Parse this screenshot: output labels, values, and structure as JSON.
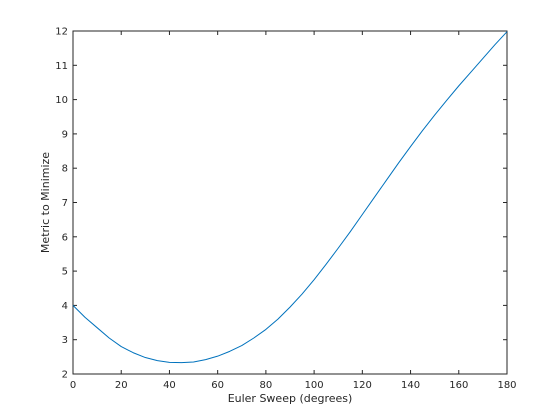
{
  "chart_data": {
    "type": "line",
    "title": "",
    "xlabel": "Euler Sweep (degrees)",
    "ylabel": "Metric to Minimize",
    "xlim": [
      0,
      180
    ],
    "ylim": [
      2,
      12
    ],
    "xticks": [
      0,
      20,
      40,
      60,
      80,
      100,
      120,
      140,
      160,
      180
    ],
    "yticks": [
      2,
      3,
      4,
      5,
      6,
      7,
      8,
      9,
      10,
      11,
      12
    ],
    "grid": false,
    "line_color": "#0072BD",
    "series": [
      {
        "x": [
          0,
          5,
          10,
          15,
          20,
          25,
          30,
          35,
          40,
          45,
          50,
          55,
          60,
          65,
          70,
          75,
          80,
          85,
          90,
          95,
          100,
          105,
          110,
          115,
          120,
          125,
          130,
          135,
          140,
          145,
          150,
          155,
          160,
          165,
          170,
          175,
          180
        ],
        "y": [
          4.0,
          3.65,
          3.35,
          3.05,
          2.8,
          2.62,
          2.48,
          2.39,
          2.34,
          2.33,
          2.35,
          2.42,
          2.52,
          2.66,
          2.83,
          3.05,
          3.3,
          3.6,
          3.95,
          4.33,
          4.75,
          5.2,
          5.67,
          6.15,
          6.65,
          7.15,
          7.65,
          8.15,
          8.63,
          9.1,
          9.55,
          9.98,
          10.4,
          10.8,
          11.2,
          11.6,
          11.98
        ]
      }
    ]
  }
}
